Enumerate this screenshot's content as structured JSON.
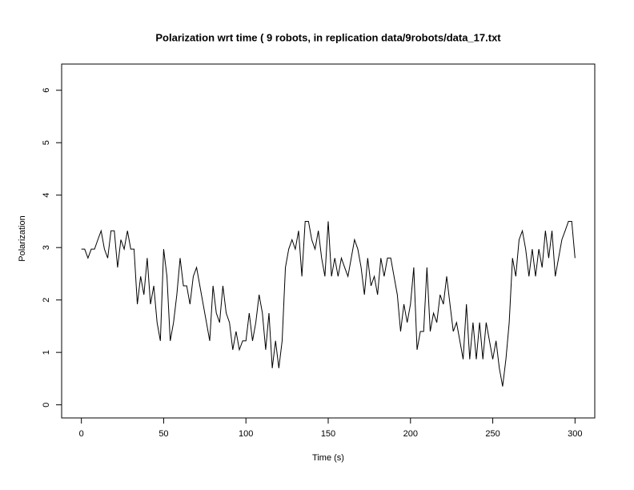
{
  "chart_data": {
    "type": "line",
    "title": "Polarization wrt time ( 9 robots, in replication  data/9robots/data_17.txt",
    "x_label": "Time (s)",
    "y_label": "Polarization",
    "x": [
      0,
      2,
      4,
      6,
      8,
      10,
      12,
      14,
      16,
      18,
      20,
      22,
      24,
      26,
      28,
      30,
      32,
      34,
      36,
      38,
      40,
      42,
      44,
      46,
      48,
      50,
      52,
      54,
      56,
      58,
      60,
      62,
      64,
      66,
      68,
      70,
      72,
      74,
      76,
      78,
      80,
      82,
      84,
      86,
      88,
      90,
      92,
      94,
      96,
      98,
      100,
      102,
      104,
      106,
      108,
      110,
      112,
      114,
      116,
      118,
      120,
      122,
      124,
      126,
      128,
      130,
      132,
      134,
      136,
      138,
      140,
      142,
      144,
      146,
      148,
      150,
      152,
      154,
      156,
      158,
      160,
      162,
      164,
      166,
      168,
      170,
      172,
      174,
      176,
      178,
      180,
      182,
      184,
      186,
      188,
      190,
      192,
      194,
      196,
      198,
      200,
      202,
      204,
      206,
      208,
      210,
      212,
      214,
      216,
      218,
      220,
      222,
      224,
      226,
      228,
      230,
      232,
      234,
      236,
      238,
      240,
      242,
      244,
      246,
      248,
      250,
      252,
      254,
      256,
      258,
      260,
      262,
      264,
      266,
      268,
      270,
      272,
      274,
      276,
      278,
      280,
      282,
      284,
      286,
      288,
      290,
      292,
      294,
      296,
      298,
      300
    ],
    "values": [
      2.97,
      2.97,
      2.8,
      2.97,
      2.97,
      3.15,
      3.32,
      2.97,
      2.8,
      3.32,
      3.32,
      2.62,
      3.15,
      2.97,
      3.32,
      2.97,
      2.97,
      1.92,
      2.45,
      2.1,
      2.8,
      1.92,
      2.27,
      1.57,
      1.22,
      2.97,
      2.45,
      1.22,
      1.57,
      2.1,
      2.8,
      2.27,
      2.27,
      1.92,
      2.45,
      2.62,
      2.27,
      1.92,
      1.57,
      1.22,
      2.27,
      1.75,
      1.57,
      2.27,
      1.75,
      1.57,
      1.05,
      1.4,
      1.05,
      1.22,
      1.22,
      1.75,
      1.22,
      1.57,
      2.1,
      1.75,
      1.05,
      1.75,
      0.7,
      1.22,
      0.7,
      1.22,
      2.62,
      2.97,
      3.15,
      2.97,
      3.32,
      2.45,
      3.5,
      3.5,
      3.15,
      2.97,
      3.32,
      2.8,
      2.45,
      3.5,
      2.45,
      2.8,
      2.45,
      2.8,
      2.62,
      2.45,
      2.8,
      3.15,
      2.97,
      2.62,
      2.1,
      2.8,
      2.27,
      2.45,
      2.1,
      2.8,
      2.45,
      2.8,
      2.8,
      2.45,
      2.1,
      1.4,
      1.92,
      1.57,
      1.92,
      2.62,
      1.05,
      1.4,
      1.4,
      2.62,
      1.4,
      1.75,
      1.57,
      2.1,
      1.92,
      2.45,
      1.92,
      1.4,
      1.57,
      1.22,
      0.87,
      1.92,
      0.87,
      1.57,
      0.87,
      1.57,
      0.87,
      1.57,
      1.22,
      0.87,
      1.22,
      0.7,
      0.35,
      0.87,
      1.57,
      2.8,
      2.45,
      3.15,
      3.32,
      2.97,
      2.45,
      2.97,
      2.45,
      2.97,
      2.62,
      3.32,
      2.8,
      3.32,
      2.45,
      2.8,
      3.15,
      3.32,
      3.5,
      3.5,
      2.8
    ],
    "color": "#000000",
    "xlim": [
      -12,
      312
    ],
    "xticks": [
      0,
      50,
      100,
      150,
      200,
      250,
      300
    ],
    "ylim": [
      -0.25,
      6.5
    ],
    "yticks": [
      0,
      1,
      2,
      3,
      4,
      5,
      6
    ]
  }
}
